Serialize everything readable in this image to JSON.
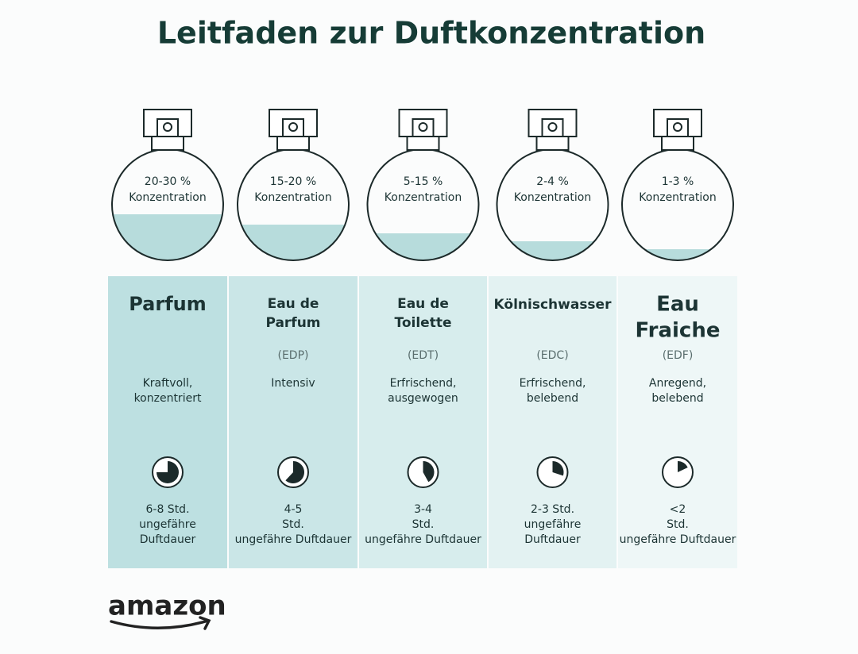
{
  "title": "Leitfaden zur Duftkonzentration",
  "columns": [
    {
      "concentration": [
        "20-30 %",
        "Konzentration"
      ],
      "name": [
        "Parfum"
      ],
      "description": [
        "Kraftvoll,",
        "konzentriert"
      ],
      "duration": [
        "6-8 Std.",
        "ungefähre",
        "Duftdauer"
      ]
    },
    {
      "concentration": [
        "15-20 %",
        "Konzentration"
      ],
      "name": [
        "Eau de",
        "Parfum"
      ],
      "abbreviation": "(EDP)",
      "description": [
        "Intensiv"
      ],
      "duration": [
        "4-5",
        "Std.",
        "ungefähre Duftdauer"
      ]
    },
    {
      "concentration": [
        "5-15 %",
        "Konzentration"
      ],
      "name": [
        "Eau de",
        "Toilette"
      ],
      "abbreviation": "(EDT)",
      "description": [
        "Erfrischend,",
        "ausgewogen"
      ],
      "duration": [
        "3-4",
        "Std.",
        "ungefähre Duftdauer"
      ]
    },
    {
      "concentration": [
        "2-4 %",
        "Konzentration"
      ],
      "name": [
        "Kölnischwasser"
      ],
      "abbreviation": "(EDC)",
      "description": [
        "Erfrischend,",
        "belebend"
      ],
      "duration": [
        "2-3 Std.",
        "ungefähre",
        "Duftdauer"
      ]
    },
    {
      "concentration": [
        "1-3 %",
        "Konzentration"
      ],
      "name": [
        "Eau",
        "Fraiche"
      ],
      "abbreviation": "(EDF)",
      "description": [
        "Anregend,",
        "belebend"
      ],
      "duration": [
        "<2",
        "Std.",
        "ungefähre Duftdauer"
      ]
    }
  ],
  "logo": "amazon"
}
